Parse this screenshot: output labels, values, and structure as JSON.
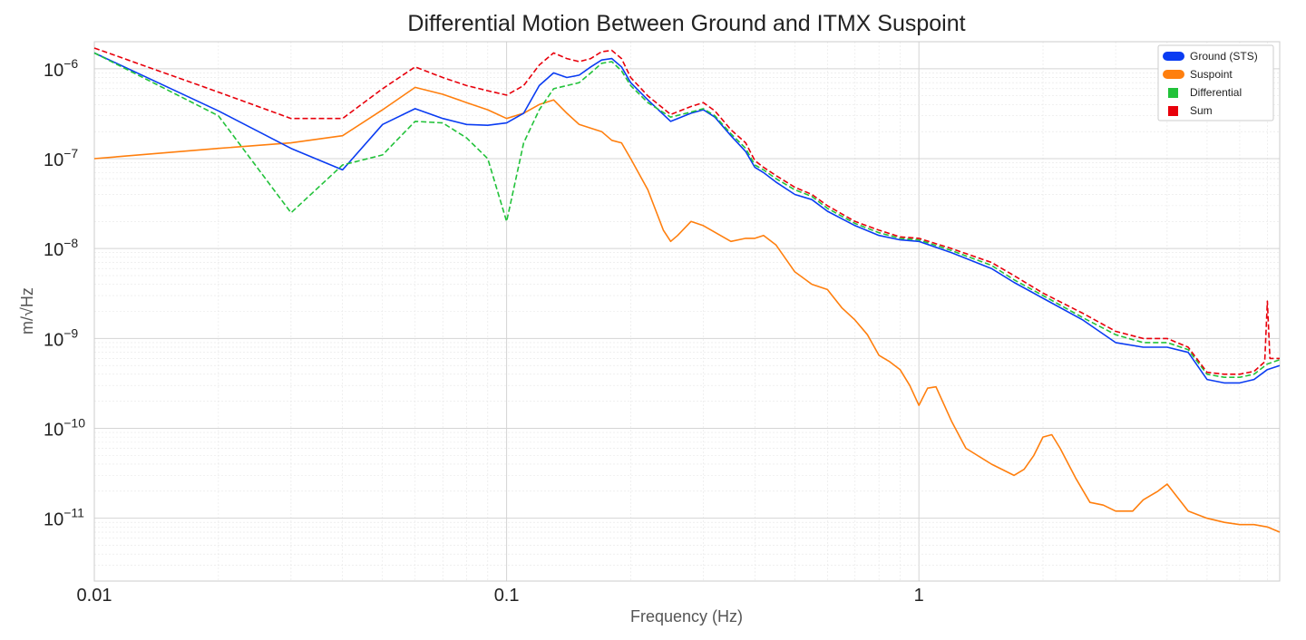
{
  "chart_data": {
    "type": "line",
    "title": "Differential Motion Between Ground and ITMX Suspoint",
    "xlabel": "Frequency (Hz)",
    "ylabel": "m/√Hz",
    "x_scale": "log",
    "y_scale": "log",
    "xlim": [
      0.01,
      7.5
    ],
    "ylim": [
      2e-12,
      2e-06
    ],
    "x_ticks": [
      {
        "value": 0.01,
        "label": "0.01"
      },
      {
        "value": 0.1,
        "label": "0.1"
      },
      {
        "value": 1,
        "label": "1"
      }
    ],
    "y_ticks": [
      {
        "value": 1e-11,
        "base": "10",
        "exp": "−11"
      },
      {
        "value": 1e-10,
        "base": "10",
        "exp": "−10"
      },
      {
        "value": 1e-09,
        "base": "10",
        "exp": "−9"
      },
      {
        "value": 1e-08,
        "base": "10",
        "exp": "−8"
      },
      {
        "value": 1e-07,
        "base": "10",
        "exp": "−7"
      },
      {
        "value": 1e-06,
        "base": "10",
        "exp": "−6"
      }
    ],
    "grid": true,
    "legend_position": "top-right",
    "series": [
      {
        "name": "Ground (STS)",
        "color": "#0a3cf2",
        "dash": "solid",
        "x": [
          0.01,
          0.02,
          0.03,
          0.04,
          0.05,
          0.06,
          0.07,
          0.08,
          0.09,
          0.1,
          0.11,
          0.12,
          0.13,
          0.14,
          0.15,
          0.16,
          0.17,
          0.18,
          0.19,
          0.2,
          0.22,
          0.25,
          0.28,
          0.3,
          0.32,
          0.35,
          0.38,
          0.4,
          0.42,
          0.45,
          0.5,
          0.55,
          0.6,
          0.7,
          0.8,
          0.9,
          1.0,
          1.2,
          1.5,
          1.7,
          2.0,
          2.5,
          3.0,
          3.5,
          4.0,
          4.5,
          5.0,
          5.5,
          6.0,
          6.5,
          7.0,
          7.5
        ],
        "y": [
          1.5e-06,
          3.4e-07,
          1.3e-07,
          7.5e-08,
          2.4e-07,
          3.6e-07,
          2.8e-07,
          2.4e-07,
          2.35e-07,
          2.5e-07,
          3.2e-07,
          6.5e-07,
          9e-07,
          8e-07,
          8.5e-07,
          1.05e-06,
          1.25e-06,
          1.3e-06,
          1.05e-06,
          7e-07,
          4.5e-07,
          2.6e-07,
          3.2e-07,
          3.5e-07,
          2.9e-07,
          1.8e-07,
          1.2e-07,
          8e-08,
          7e-08,
          5.5e-08,
          4e-08,
          3.5e-08,
          2.6e-08,
          1.8e-08,
          1.4e-08,
          1.25e-08,
          1.2e-08,
          9e-09,
          6e-09,
          4.2e-09,
          2.8e-09,
          1.6e-09,
          9e-10,
          8e-10,
          8e-10,
          7e-10,
          3.5e-10,
          3.2e-10,
          3.2e-10,
          3.5e-10,
          4.5e-10,
          5e-10
        ]
      },
      {
        "name": "Suspoint",
        "color": "#ff7f0e",
        "dash": "solid",
        "x": [
          0.01,
          0.02,
          0.03,
          0.04,
          0.05,
          0.06,
          0.07,
          0.08,
          0.09,
          0.1,
          0.11,
          0.12,
          0.13,
          0.14,
          0.15,
          0.17,
          0.18,
          0.19,
          0.2,
          0.22,
          0.24,
          0.25,
          0.26,
          0.28,
          0.3,
          0.33,
          0.35,
          0.38,
          0.4,
          0.42,
          0.45,
          0.5,
          0.55,
          0.6,
          0.65,
          0.7,
          0.75,
          0.8,
          0.85,
          0.9,
          0.95,
          1.0,
          1.05,
          1.1,
          1.2,
          1.3,
          1.5,
          1.7,
          1.8,
          1.9,
          2.0,
          2.1,
          2.2,
          2.4,
          2.6,
          2.8,
          3.0,
          3.3,
          3.5,
          3.8,
          4.0,
          4.5,
          5.0,
          5.5,
          6.0,
          6.5,
          7.0,
          7.5
        ],
        "y": [
          1e-07,
          1.3e-07,
          1.5e-07,
          1.8e-07,
          3.5e-07,
          6.2e-07,
          5.2e-07,
          4.2e-07,
          3.5e-07,
          2.8e-07,
          3.2e-07,
          4e-07,
          4.5e-07,
          3.2e-07,
          2.4e-07,
          2e-07,
          1.6e-07,
          1.5e-07,
          1e-07,
          4.5e-08,
          1.6e-08,
          1.2e-08,
          1.4e-08,
          2e-08,
          1.8e-08,
          1.4e-08,
          1.2e-08,
          1.3e-08,
          1.3e-08,
          1.4e-08,
          1.1e-08,
          5.5e-09,
          4e-09,
          3.5e-09,
          2.2e-09,
          1.6e-09,
          1.1e-09,
          6.5e-10,
          5.5e-10,
          4.5e-10,
          3e-10,
          1.8e-10,
          2.8e-10,
          2.9e-10,
          1.2e-10,
          6e-11,
          4e-11,
          3e-11,
          3.5e-11,
          5e-11,
          8e-11,
          8.5e-11,
          6e-11,
          2.8e-11,
          1.5e-11,
          1.4e-11,
          1.2e-11,
          1.2e-11,
          1.6e-11,
          2e-11,
          2.4e-11,
          1.2e-11,
          1e-11,
          9e-12,
          8.5e-12,
          8.5e-12,
          8e-12,
          7e-12
        ]
      },
      {
        "name": "Differential",
        "color": "#22c23a",
        "dash": "dashed",
        "x": [
          0.01,
          0.02,
          0.03,
          0.04,
          0.05,
          0.06,
          0.07,
          0.08,
          0.09,
          0.1,
          0.11,
          0.12,
          0.13,
          0.14,
          0.15,
          0.16,
          0.17,
          0.18,
          0.19,
          0.2,
          0.22,
          0.25,
          0.28,
          0.3,
          0.32,
          0.35,
          0.38,
          0.4,
          0.42,
          0.45,
          0.5,
          0.55,
          0.6,
          0.7,
          0.8,
          0.9,
          1.0,
          1.2,
          1.5,
          1.7,
          2.0,
          2.5,
          3.0,
          3.5,
          4.0,
          4.5,
          5.0,
          5.5,
          6.0,
          6.5,
          7.0,
          7.5
        ],
        "y": [
          1.5e-06,
          3e-07,
          2.5e-08,
          8.5e-08,
          1.1e-07,
          2.6e-07,
          2.5e-07,
          1.7e-07,
          1e-07,
          2e-08,
          1.5e-07,
          3.5e-07,
          6e-07,
          6.5e-07,
          7e-07,
          9e-07,
          1.15e-06,
          1.2e-06,
          9.5e-07,
          6.5e-07,
          4.2e-07,
          2.9e-07,
          3.3e-07,
          3.6e-07,
          3e-07,
          1.9e-07,
          1.3e-07,
          8.5e-08,
          7.5e-08,
          6e-08,
          4.5e-08,
          3.8e-08,
          2.8e-08,
          1.9e-08,
          1.5e-08,
          1.3e-08,
          1.25e-08,
          9.5e-09,
          6.5e-09,
          4.5e-09,
          3e-09,
          1.7e-09,
          1.1e-09,
          9e-10,
          9e-10,
          7.5e-10,
          4e-10,
          3.7e-10,
          3.7e-10,
          4e-10,
          5.2e-10,
          5.8e-10
        ]
      },
      {
        "name": "Sum",
        "color": "#e8000b",
        "dash": "dashed",
        "x": [
          0.01,
          0.02,
          0.03,
          0.04,
          0.05,
          0.06,
          0.07,
          0.08,
          0.09,
          0.1,
          0.11,
          0.12,
          0.13,
          0.14,
          0.15,
          0.16,
          0.17,
          0.18,
          0.19,
          0.2,
          0.22,
          0.25,
          0.28,
          0.3,
          0.32,
          0.35,
          0.38,
          0.4,
          0.42,
          0.45,
          0.5,
          0.55,
          0.6,
          0.7,
          0.8,
          0.9,
          1.0,
          1.2,
          1.5,
          1.7,
          2.0,
          2.5,
          3.0,
          3.5,
          4.0,
          4.5,
          5.0,
          5.5,
          6.0,
          6.5,
          6.9,
          7.0,
          7.1,
          7.5
        ],
        "y": [
          1.7e-06,
          5.5e-07,
          2.8e-07,
          2.8e-07,
          6e-07,
          1.05e-06,
          8e-07,
          6.5e-07,
          5.7e-07,
          5.1e-07,
          6.5e-07,
          1.1e-06,
          1.5e-06,
          1.3e-06,
          1.2e-06,
          1.3e-06,
          1.55e-06,
          1.6e-06,
          1.3e-06,
          8e-07,
          5e-07,
          3.1e-07,
          3.8e-07,
          4.2e-07,
          3.4e-07,
          2.1e-07,
          1.5e-07,
          9.5e-08,
          8e-08,
          6.5e-08,
          4.8e-08,
          4e-08,
          3e-08,
          2e-08,
          1.6e-08,
          1.35e-08,
          1.3e-08,
          1e-08,
          7e-09,
          5e-09,
          3.2e-09,
          1.9e-09,
          1.2e-09,
          1e-09,
          1e-09,
          8e-10,
          4.2e-10,
          4e-10,
          4e-10,
          4.3e-10,
          5.5e-10,
          2.6e-09,
          6e-10,
          6e-10
        ]
      }
    ]
  }
}
